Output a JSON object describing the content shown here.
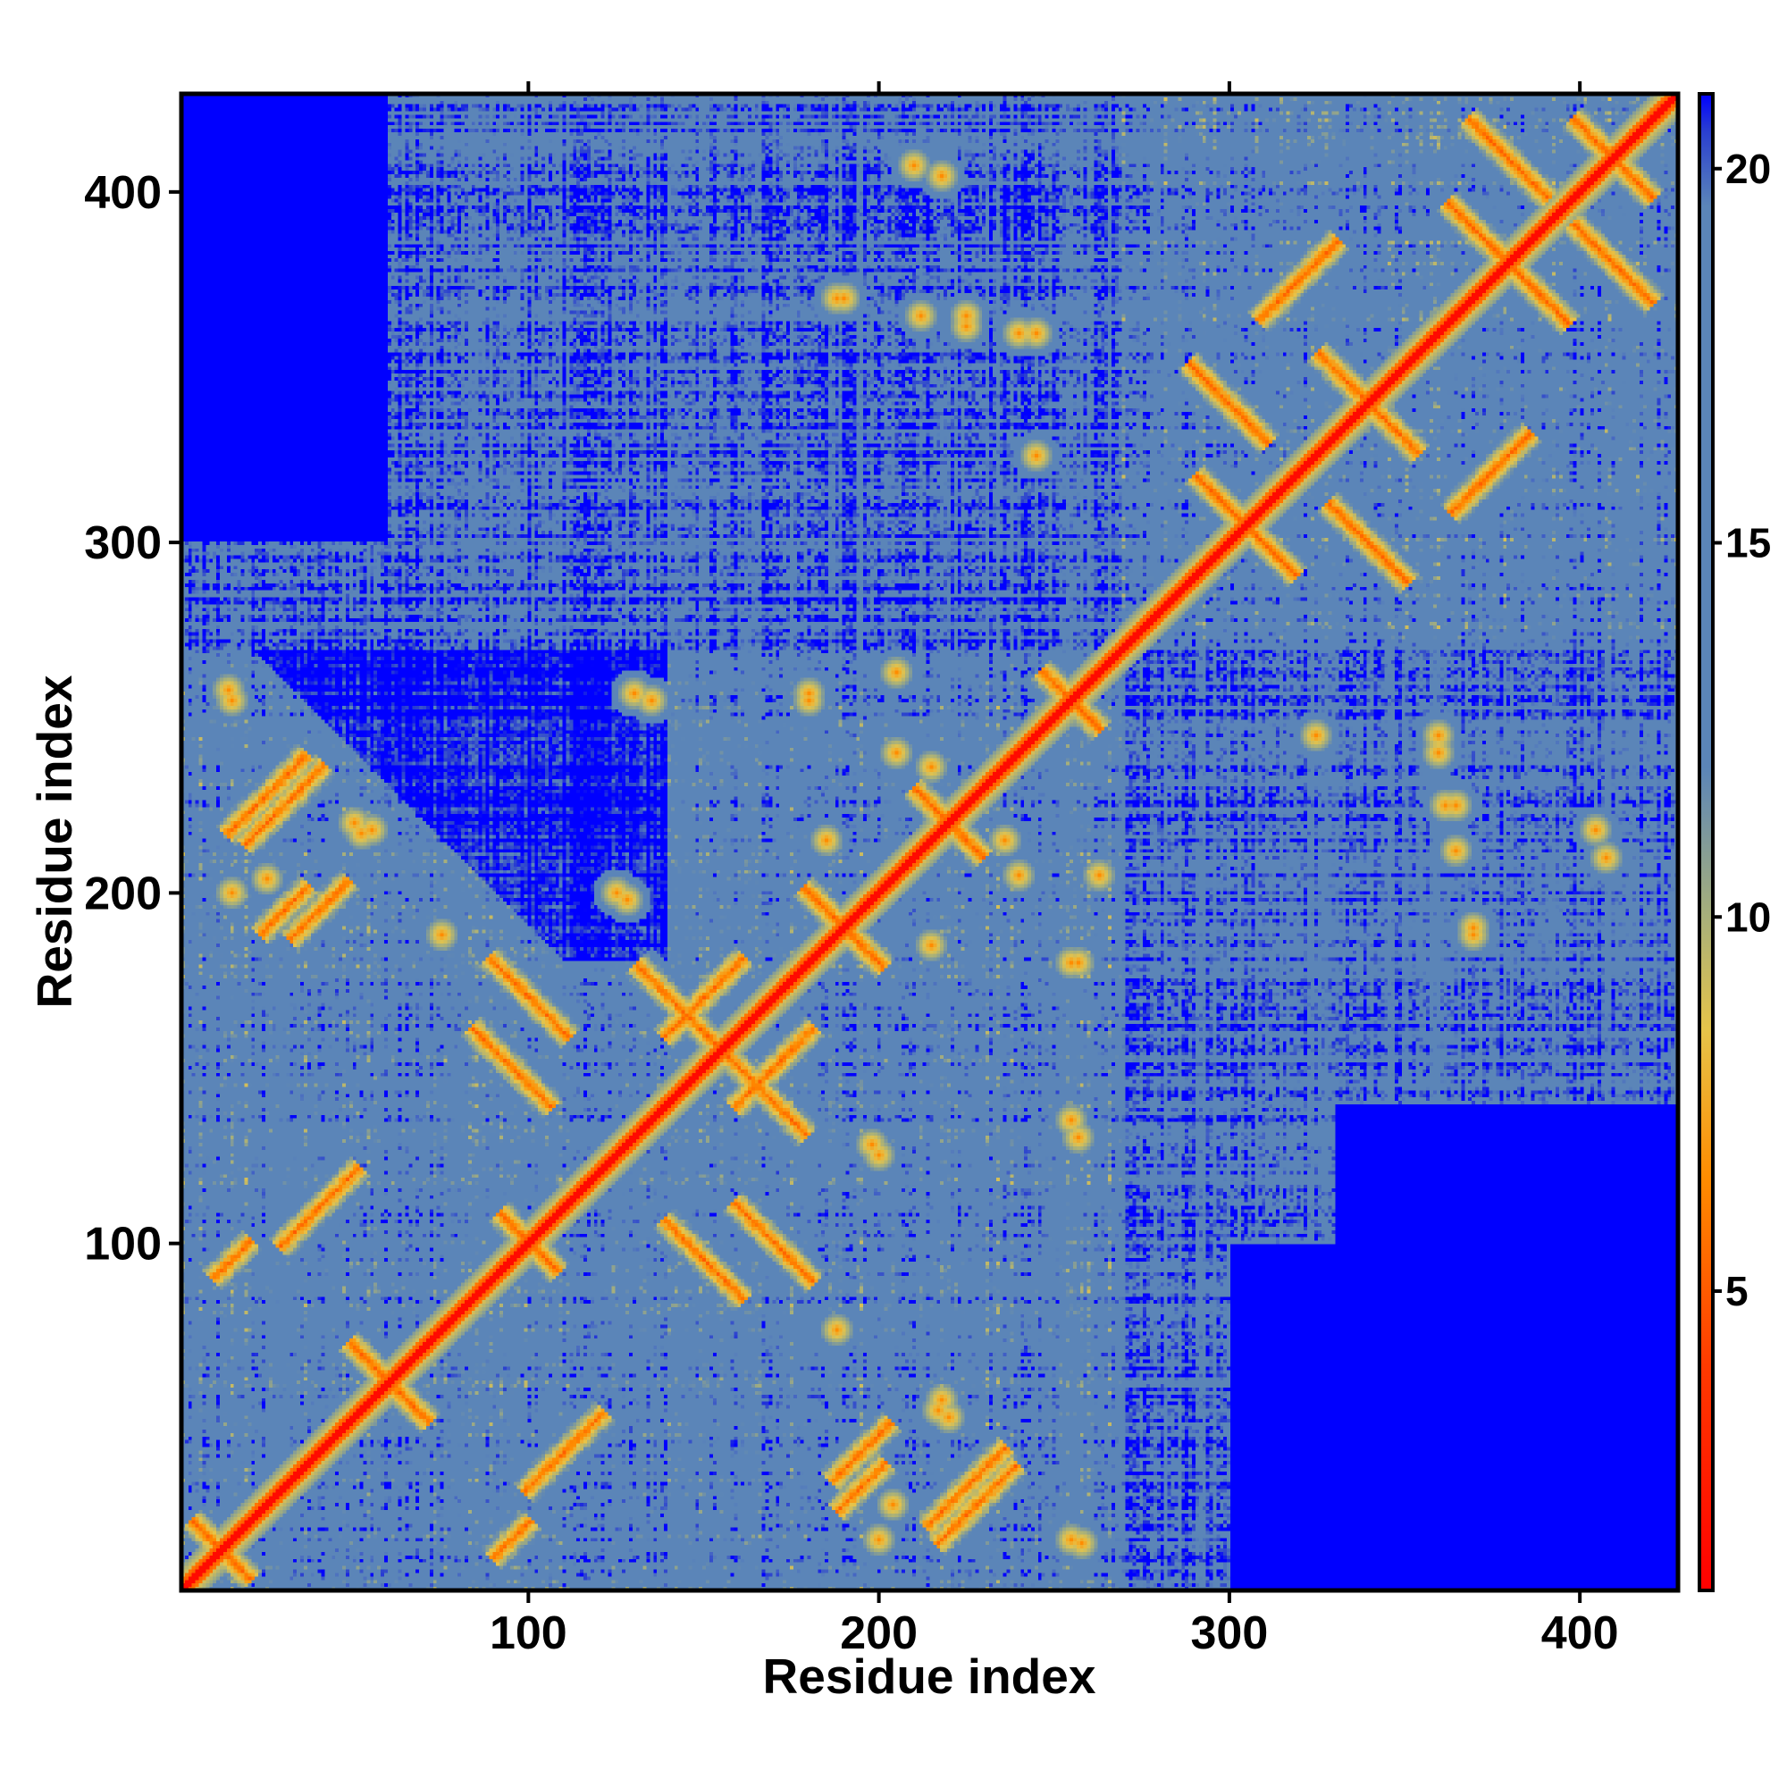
{
  "chart_data": {
    "type": "heatmap",
    "title": "",
    "xlabel": "Residue index",
    "ylabel": "Residue index",
    "xlim": [
      1,
      428
    ],
    "ylim": [
      1,
      428
    ],
    "x_ticks": [
      100,
      200,
      300,
      400
    ],
    "y_ticks": [
      100,
      200,
      300,
      400
    ],
    "x_tick_labels": [
      "100",
      "200",
      "300",
      "400"
    ],
    "y_tick_labels": [
      "100",
      "200",
      "300",
      "400"
    ],
    "symmetric": true,
    "grid": false,
    "matrix_description": "pairwise residue distance map; near-zero distances along the main diagonal",
    "colorbar": {
      "range": [
        1,
        21
      ],
      "ticks": [
        5,
        10,
        15,
        20
      ],
      "tick_labels": [
        "5",
        "10",
        "15",
        "20"
      ],
      "placement": "right",
      "stops": [
        {
          "value": 1,
          "color": "#ff0000"
        },
        {
          "value": 4,
          "color": "#ff3a00"
        },
        {
          "value": 6.5,
          "color": "#ff8c00"
        },
        {
          "value": 8.5,
          "color": "#e6c44a"
        },
        {
          "value": 10,
          "color": "#a8b07a"
        },
        {
          "value": 12,
          "color": "#5b85b8"
        },
        {
          "value": 19.5,
          "color": "#5b85b8"
        },
        {
          "value": 20.5,
          "color": "#2a3fd0"
        },
        {
          "value": 21,
          "color": "#0000ff"
        }
      ]
    },
    "domains": [
      {
        "start": 1,
        "end": 270
      },
      {
        "start": 270,
        "end": 428
      }
    ],
    "contact_features": [
      {
        "type": "anti",
        "center": [
          12,
          12
        ],
        "length": 30
      },
      {
        "type": "anti",
        "center": [
          60,
          60
        ],
        "length": 40
      },
      {
        "type": "anti",
        "center": [
          100,
          100
        ],
        "length": 30
      },
      {
        "type": "anti",
        "center": [
          190,
          190
        ],
        "length": 40
      },
      {
        "type": "anti",
        "center": [
          220,
          220
        ],
        "length": 35
      },
      {
        "type": "anti",
        "center": [
          255,
          255
        ],
        "length": 30
      },
      {
        "type": "anti",
        "center": [
          305,
          305
        ],
        "length": 50
      },
      {
        "type": "anti",
        "center": [
          340,
          340
        ],
        "length": 50
      },
      {
        "type": "anti",
        "center": [
          380,
          380
        ],
        "length": 60
      },
      {
        "type": "anti",
        "center": [
          410,
          410
        ],
        "length": 40
      },
      {
        "type": "par",
        "center": [
          30,
          225
        ],
        "length": 40
      },
      {
        "type": "par",
        "center": [
          40,
          195
        ],
        "length": 30
      },
      {
        "type": "par",
        "center": [
          15,
          95
        ],
        "length": 20
      },
      {
        "type": "par",
        "center": [
          110,
          40
        ],
        "length": 40
      },
      {
        "type": "par",
        "center": [
          195,
          30
        ],
        "length": 25
      },
      {
        "type": "par",
        "center": [
          228,
          25
        ],
        "length": 40
      },
      {
        "type": "anti",
        "center": [
          100,
          170
        ],
        "length": 40
      },
      {
        "type": "par",
        "center": [
          150,
          170
        ],
        "length": 40
      },
      {
        "type": "anti",
        "center": [
          165,
          145
        ],
        "length": 50
      },
      {
        "type": "anti",
        "center": [
          150,
          95
        ],
        "length": 40
      },
      {
        "type": "par",
        "center": [
          320,
          375
        ],
        "length": 40
      },
      {
        "type": "par",
        "center": [
          375,
          320
        ],
        "length": 40
      },
      {
        "type": "anti",
        "center": [
          300,
          340
        ],
        "length": 40
      },
      {
        "type": "anti",
        "center": [
          340,
          300
        ],
        "length": 40
      },
      {
        "type": "anti",
        "center": [
          380,
          410
        ],
        "length": 40
      },
      {
        "type": "anti",
        "center": [
          410,
          380
        ],
        "length": 40
      }
    ],
    "spots": [
      [
        14,
        258
      ],
      [
        52,
        217
      ],
      [
        25,
        204
      ],
      [
        130,
        257
      ],
      [
        128,
        198
      ],
      [
        180,
        257
      ],
      [
        205,
        263
      ],
      [
        215,
        236
      ],
      [
        225,
        362
      ],
      [
        240,
        360
      ],
      [
        245,
        325
      ],
      [
        210,
        408
      ],
      [
        240,
        205
      ],
      [
        255,
        180
      ],
      [
        200,
        125
      ],
      [
        255,
        135
      ],
      [
        190,
        370
      ],
      [
        185,
        215
      ],
      [
        55,
        218
      ],
      [
        210,
        210
      ],
      [
        325,
        245
      ],
      [
        360,
        245
      ],
      [
        365,
        225
      ],
      [
        365,
        212
      ],
      [
        405,
        218
      ],
      [
        370,
        188
      ],
      [
        188,
        75
      ],
      [
        220,
        50
      ],
      [
        255,
        15
      ],
      [
        200,
        15
      ]
    ]
  }
}
